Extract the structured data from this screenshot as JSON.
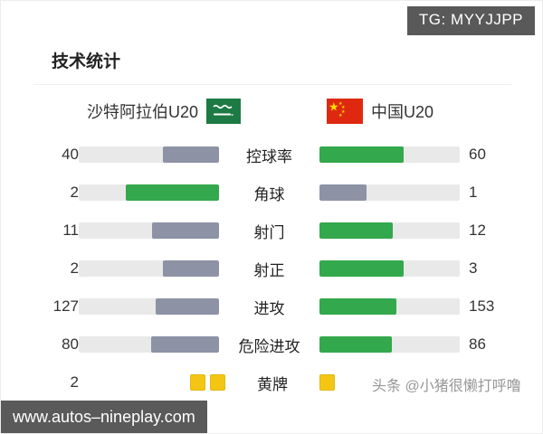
{
  "badge": {
    "text": "TG: MYYJJPP"
  },
  "title": "技术统计",
  "teams": {
    "home": {
      "name": "沙特阿拉伯U20",
      "flag": "saudi-arabia-flag"
    },
    "away": {
      "name": "中国U20",
      "flag": "china-flag"
    }
  },
  "colors": {
    "leader_green": "#34a84c",
    "trailer_gray": "#8d93a5",
    "bar_track": "#e9e9ea",
    "yellow_card": "#f4c614",
    "badge_bg": "#595959",
    "saudi_green": "#1e7a44",
    "china_red": "#de2910",
    "star_yellow": "#ffde00"
  },
  "chart_data": {
    "type": "bar",
    "orientation": "horizontal-paired",
    "title": "技术统计",
    "categories": [
      "控球率",
      "角球",
      "射门",
      "射正",
      "进攻",
      "危险进攻",
      "黄牌"
    ],
    "series": [
      {
        "name": "沙特阿拉伯U20",
        "values": [
          40,
          2,
          11,
          2,
          127,
          80,
          2
        ]
      },
      {
        "name": "中国U20",
        "values": [
          60,
          1,
          12,
          3,
          153,
          86,
          1
        ]
      }
    ],
    "notes": "Each bar fill is proportional to value/(home+away). Leading side bar is green, trailing side gray. 黄牌 row rendered as yellow card squares (home 2 shown with number 2, away 1 square with no printed number)."
  },
  "stats": {
    "rows": [
      {
        "label": "控球率",
        "home": {
          "value": "40",
          "pct": 40,
          "leader": false
        },
        "away": {
          "value": "60",
          "pct": 60,
          "leader": true
        }
      },
      {
        "label": "角球",
        "home": {
          "value": "2",
          "pct": 66.7,
          "leader": true
        },
        "away": {
          "value": "1",
          "pct": 33.3,
          "leader": false
        }
      },
      {
        "label": "射门",
        "home": {
          "value": "11",
          "pct": 47.8,
          "leader": false
        },
        "away": {
          "value": "12",
          "pct": 52.2,
          "leader": true
        }
      },
      {
        "label": "射正",
        "home": {
          "value": "2",
          "pct": 40,
          "leader": false
        },
        "away": {
          "value": "3",
          "pct": 60,
          "leader": true
        }
      },
      {
        "label": "进攻",
        "home": {
          "value": "127",
          "pct": 45.4,
          "leader": false
        },
        "away": {
          "value": "153",
          "pct": 54.6,
          "leader": true
        }
      },
      {
        "label": "危险进攻",
        "home": {
          "value": "80",
          "pct": 48.2,
          "leader": false
        },
        "away": {
          "value": "86",
          "pct": 51.8,
          "leader": true
        }
      }
    ],
    "cards_row": {
      "label": "黄牌",
      "home": {
        "value": "2",
        "cards": 2
      },
      "away": {
        "value": "",
        "cards": 1
      }
    }
  },
  "watermark": "头条 @小猪很懒打呼噜",
  "footer": {
    "url": "www.autos–nineplay.com"
  }
}
